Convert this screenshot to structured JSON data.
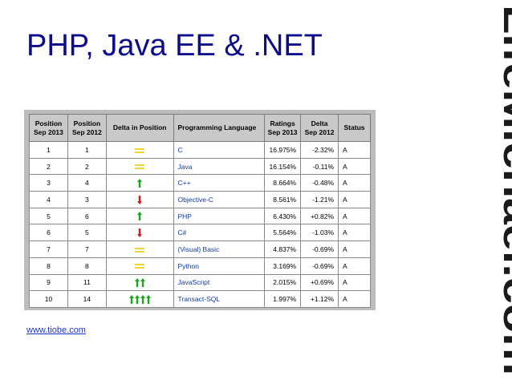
{
  "slide": {
    "title": "PHP, Java EE & .NET",
    "brand": "LifeMichael.com",
    "link": "www.tiobe.com"
  },
  "colors": {
    "title": "#0d0d8c",
    "brand": "#1a1a1a",
    "up_arrow": "#1aa51a",
    "down_arrow": "#d41c1c",
    "equal_sign": "#f2d33a",
    "language_text": "#123a9c",
    "header_bg": "#c9c9c9",
    "frame_bg": "#bcbcbc"
  },
  "table": {
    "headers": [
      "Position\nSep 2013",
      "Position\nSep 2012",
      "Delta in Position",
      "Programming Language",
      "Ratings\nSep 2013",
      "Delta\nSep 2012",
      "Status"
    ],
    "rows": [
      {
        "pos2013": "1",
        "pos2012": "1",
        "delta": "equal",
        "arrows": 0,
        "language": "C",
        "rating": "16.975%",
        "change": "-2.32%",
        "status": "A"
      },
      {
        "pos2013": "2",
        "pos2012": "2",
        "delta": "equal",
        "arrows": 0,
        "language": "Java",
        "rating": "16.154%",
        "change": "-0.11%",
        "status": "A"
      },
      {
        "pos2013": "3",
        "pos2012": "4",
        "delta": "up",
        "arrows": 1,
        "language": "C++",
        "rating": "8.664%",
        "change": "-0.48%",
        "status": "A"
      },
      {
        "pos2013": "4",
        "pos2012": "3",
        "delta": "down",
        "arrows": 1,
        "language": "Objective-C",
        "rating": "8.561%",
        "change": "-1.21%",
        "status": "A"
      },
      {
        "pos2013": "5",
        "pos2012": "6",
        "delta": "up",
        "arrows": 1,
        "language": "PHP",
        "rating": "6.430%",
        "change": "+0.82%",
        "status": "A"
      },
      {
        "pos2013": "6",
        "pos2012": "5",
        "delta": "down",
        "arrows": 1,
        "language": "C#",
        "rating": "5.564%",
        "change": "-1.03%",
        "status": "A"
      },
      {
        "pos2013": "7",
        "pos2012": "7",
        "delta": "equal",
        "arrows": 0,
        "language": "(Visual) Basic",
        "rating": "4.837%",
        "change": "-0.69%",
        "status": "A"
      },
      {
        "pos2013": "8",
        "pos2012": "8",
        "delta": "equal",
        "arrows": 0,
        "language": "Python",
        "rating": "3.169%",
        "change": "-0.69%",
        "status": "A"
      },
      {
        "pos2013": "9",
        "pos2012": "11",
        "delta": "up",
        "arrows": 2,
        "language": "JavaScript",
        "rating": "2.015%",
        "change": "+0.69%",
        "status": "A"
      },
      {
        "pos2013": "10",
        "pos2012": "14",
        "delta": "up",
        "arrows": 4,
        "language": "Transact-SQL",
        "rating": "1.997%",
        "change": "+1.12%",
        "status": "A"
      }
    ]
  }
}
